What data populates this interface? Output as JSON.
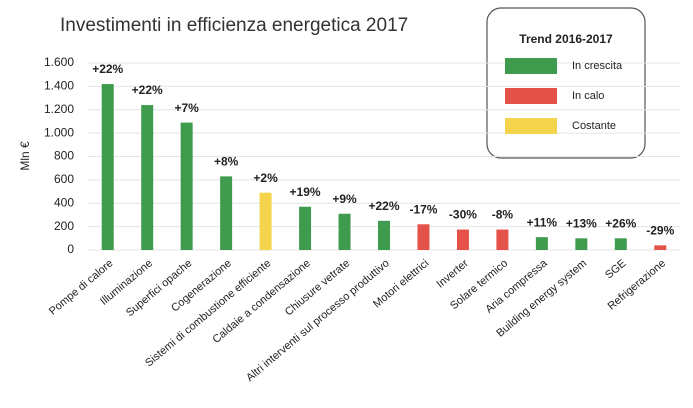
{
  "chart_data": {
    "type": "bar",
    "title": "Investimenti in efficienza energetica 2017",
    "ylabel": "Mln €",
    "categories": [
      "Pompe di calore",
      "Illuminazione",
      "Superfici opache",
      "Cogenerazione",
      "Sistemi di combustione efficiente",
      "Caldaie a condensazione",
      "Chiusure vetrate",
      "Altri interventi sul processo produttivo",
      "Motori elettrici",
      "Inverter",
      "Solare termico",
      "Aria compressa",
      "Building energy system",
      "SGE",
      "Refrigerazione"
    ],
    "values": [
      1420,
      1240,
      1090,
      630,
      490,
      370,
      310,
      250,
      220,
      175,
      175,
      110,
      100,
      100,
      40
    ],
    "colors": [
      "#3f9c4e",
      "#3f9c4e",
      "#3f9c4e",
      "#3f9c4e",
      "#f3d44a",
      "#3f9c4e",
      "#3f9c4e",
      "#3f9c4e",
      "#e5524a",
      "#e5524a",
      "#e5524a",
      "#3f9c4e",
      "#3f9c4e",
      "#3f9c4e",
      "#e5524a"
    ],
    "annotations": [
      "+22%",
      "+22%",
      "+7%",
      "+8%",
      "+2%",
      "+19%",
      "+9%",
      "+22%",
      "-17%",
      "-30%",
      "-8%",
      "+11%",
      "+13%",
      "+26%",
      "-29%"
    ],
    "ylim": [
      0,
      1600
    ],
    "yticks": [
      0,
      200,
      400,
      600,
      800,
      {
        "value": 1000,
        "label": "1.000"
      },
      {
        "value": 1200,
        "label": "1.200"
      },
      {
        "value": 1400,
        "label": "1.400"
      },
      {
        "value": 1600,
        "label": "1.600"
      }
    ],
    "legend": {
      "title": "Trend 2016-2017",
      "entries": [
        {
          "name": "In crescita",
          "color": "#3f9c4e"
        },
        {
          "name": "In calo",
          "color": "#e5524a"
        },
        {
          "name": "Costante",
          "color": "#f3d44a"
        }
      ]
    }
  }
}
